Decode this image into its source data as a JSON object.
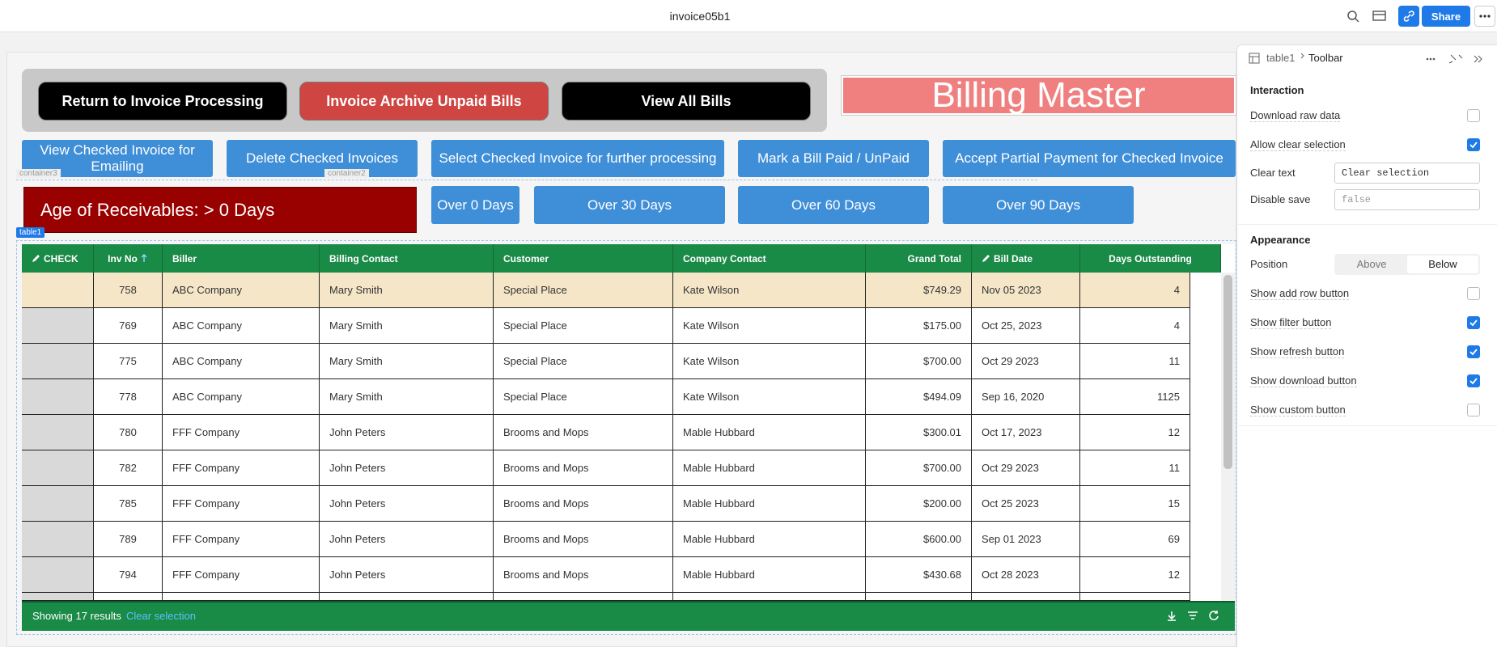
{
  "top_bar": {
    "title": "invoice05b1",
    "share": "Share"
  },
  "nav_buttons": [
    {
      "label": "Return to Invoice Processing",
      "color": "#000000"
    },
    {
      "label": "Invoice Archive Unpaid Bills",
      "color": "#cf4541"
    },
    {
      "label": "View All Bills",
      "color": "#000000"
    }
  ],
  "banner": "Billing Master",
  "action_buttons": [
    "View Checked Invoice for Emailing",
    "Delete Checked Invoices",
    "Select Checked Invoice for further processing",
    "Mark a Bill Paid / UnPaid",
    "Accept Partial Payment for Checked Invoice"
  ],
  "age_label": "Age of Receivables: > 0 Days",
  "age_buttons": [
    "Over 0 Days",
    "Over 30 Days",
    "Over 60 Days",
    "Over 90 Days"
  ],
  "component_labels": {
    "container3": "container3",
    "container2": "container2",
    "table": "table1"
  },
  "table": {
    "columns": [
      {
        "label": "CHECK",
        "editable": true
      },
      {
        "label": "Inv No",
        "sorted": true
      },
      {
        "label": "Biller"
      },
      {
        "label": "Billing Contact"
      },
      {
        "label": "Customer"
      },
      {
        "label": "Company Contact"
      },
      {
        "label": "Grand Total"
      },
      {
        "label": "Bill Date",
        "editable": true
      },
      {
        "label": "Days Outstanding"
      }
    ],
    "rows": [
      [
        "758",
        "ABC Company",
        "Mary Smith",
        "Special Place",
        "Kate Wilson",
        "$749.29",
        "Nov 05 2023",
        "4"
      ],
      [
        "769",
        "ABC Company",
        "Mary Smith",
        "Special Place",
        "Kate Wilson",
        "$175.00",
        "Oct 25, 2023",
        "4"
      ],
      [
        "775",
        "ABC Company",
        "Mary Smith",
        "Special Place",
        "Kate Wilson",
        "$700.00",
        "Oct 29 2023",
        "11"
      ],
      [
        "778",
        "ABC Company",
        "Mary Smith",
        "Special Place",
        "Kate Wilson",
        "$494.09",
        "Sep 16, 2020",
        "1125"
      ],
      [
        "780",
        "FFF Company",
        "John Peters",
        "Brooms and Mops",
        "Mable Hubbard",
        "$300.01",
        "Oct 17, 2023",
        "12"
      ],
      [
        "782",
        "FFF Company",
        "John Peters",
        "Brooms and Mops",
        "Mable Hubbard",
        "$700.00",
        "Oct 29 2023",
        "11"
      ],
      [
        "785",
        "FFF Company",
        "John Peters",
        "Brooms and Mops",
        "Mable Hubbard",
        "$200.00",
        "Oct 25 2023",
        "15"
      ],
      [
        "789",
        "FFF Company",
        "John Peters",
        "Brooms and Mops",
        "Mable Hubbard",
        "$600.00",
        "Sep 01 2023",
        "69"
      ],
      [
        "794",
        "FFF Company",
        "John Peters",
        "Brooms and Mops",
        "Mable Hubbard",
        "$430.68",
        "Oct 28 2023",
        "12"
      ]
    ],
    "footer": {
      "results": "Showing 17 results",
      "clear": "Clear selection"
    }
  },
  "panel": {
    "breadcrumb": [
      "table1",
      "Toolbar"
    ],
    "interaction": {
      "title": "Interaction",
      "checks": [
        {
          "label": "Download raw data",
          "checked": false
        },
        {
          "label": "Allow clear selection",
          "checked": true
        }
      ],
      "inputs": [
        {
          "label": "Clear text",
          "value": "Clear selection"
        },
        {
          "label": "Disable save",
          "value": "false"
        }
      ]
    },
    "appearance": {
      "title": "Appearance",
      "position": {
        "label": "Position",
        "options": [
          "Above",
          "Below"
        ],
        "selected": 1
      },
      "checks": [
        {
          "label": "Show add row button",
          "checked": false
        },
        {
          "label": "Show filter button",
          "checked": true
        },
        {
          "label": "Show refresh button",
          "checked": true
        },
        {
          "label": "Show download button",
          "checked": true
        },
        {
          "label": "Show custom button",
          "checked": false
        }
      ]
    }
  }
}
